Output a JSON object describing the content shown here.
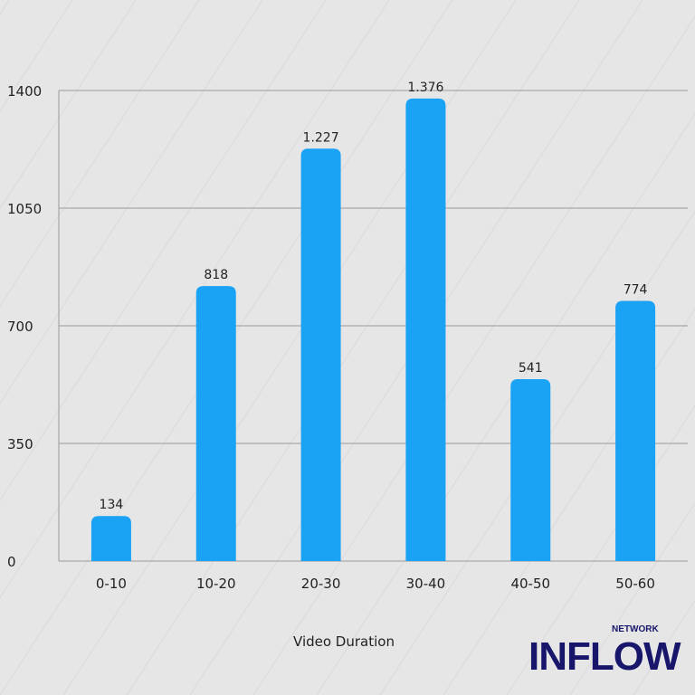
{
  "chart_data": {
    "type": "bar",
    "categories": [
      "0-10",
      "10-20",
      "20-30",
      "30-40",
      "40-50",
      "50-60"
    ],
    "values": [
      134,
      818,
      1227,
      1376,
      541,
      774
    ],
    "data_labels": [
      "134",
      "818",
      "1.227",
      "1.376",
      "541",
      "774"
    ],
    "xlabel": "Video Duration",
    "ylabel": "",
    "ylim": [
      0,
      1400
    ],
    "yticks": [
      0,
      350,
      700,
      1050,
      1400
    ],
    "grid": true,
    "bar_color": "#1aa3f5"
  },
  "logo": {
    "text": "INFLOW",
    "subtext": "NETWORK",
    "color": "#17166b"
  }
}
